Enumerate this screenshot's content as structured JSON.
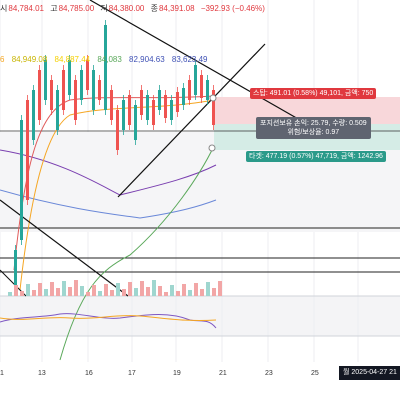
{
  "ohlc_bar": {
    "open_label": "시",
    "open_value": "84,784.01",
    "high_label": "고",
    "high_value": "84,785.00",
    "low_label": "저",
    "low_value": "84,380.00",
    "close_label": "종",
    "close_value": "84,391.08",
    "change": "−392.93 (−0.46%)"
  },
  "ma_values": [
    {
      "text": "6",
      "color": "#f5a623"
    },
    {
      "text": "84,949.08",
      "color": "#c8b400"
    },
    {
      "text": "84,887.44",
      "color": "#f5d000"
    },
    {
      "text": "84,083",
      "color": "#5aa85a"
    },
    {
      "text": "82,904.63",
      "color": "#3f51b5"
    },
    {
      "text": "83,623.49",
      "color": "#3f51b5"
    }
  ],
  "stop_tag": "스탑: 491.01 (0.58%) 49,101, 금액: 750",
  "position_box": {
    "line1": "포지션보유 손익: 25.79, 수량: 0.509",
    "line2": "위험/보상율: 0.97"
  },
  "target_tag": "타겟: 477.19 (0.57%) 47,719, 금액: 1242.96",
  "x_axis_labels": [
    "13",
    "16",
    "17",
    "19",
    "21",
    "23",
    "25"
  ],
  "x_axis_first": "1",
  "current_date": "월 2025-04-27   21",
  "colors": {
    "up": "#26a69a",
    "down": "#ef5350",
    "stop_zone": "#f8d7da",
    "target_zone": "#d5ece6",
    "stop_tag": "#e0383e",
    "target_tag": "#2b9a8a"
  }
}
